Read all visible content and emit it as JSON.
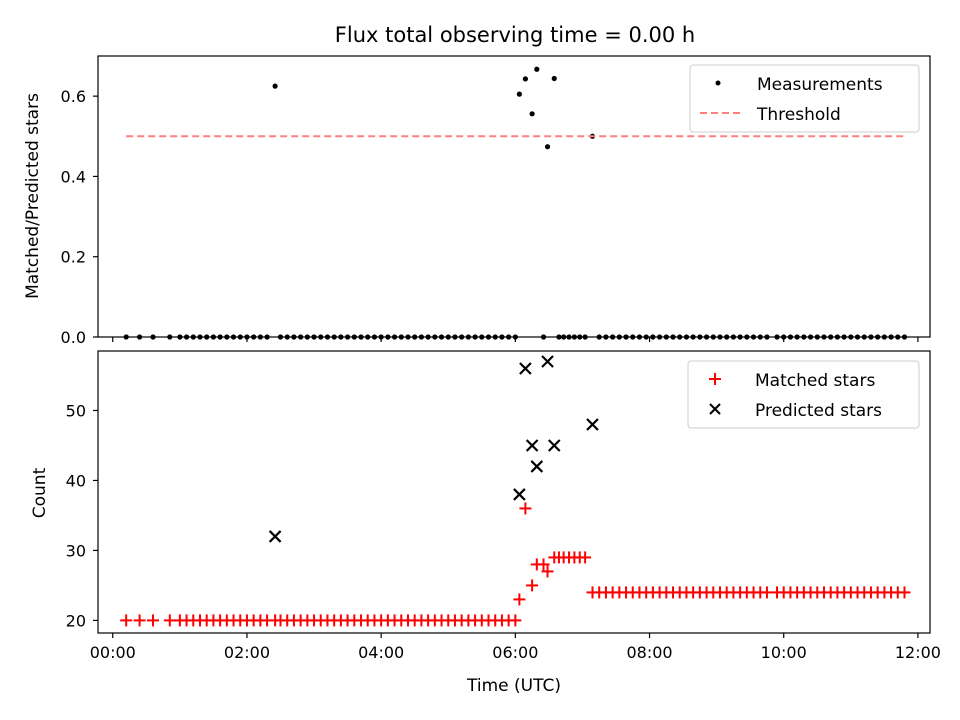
{
  "figure": {
    "title": "Flux total observing time = 0.00 h"
  },
  "chart_data": [
    {
      "type": "scatter",
      "ylabel": "Matched/Predicted stars",
      "xlabel": "",
      "xlim": [
        -0.22,
        12.18
      ],
      "ylim": [
        0.0,
        0.7
      ],
      "yticks": [
        0.0,
        0.2,
        0.4,
        0.6
      ],
      "xtick_hours": [
        0,
        2,
        4,
        6,
        8,
        10,
        12
      ],
      "xtick_labels": [],
      "legend": "top-right",
      "grid": false,
      "series": [
        {
          "name": "Measurements",
          "marker": "dot",
          "color": "#000000",
          "x": [
            0.2,
            0.4,
            0.6,
            0.85,
            1.0,
            1.1,
            1.2,
            1.3,
            1.4,
            1.5,
            1.6,
            1.7,
            1.8,
            1.9,
            2.0,
            2.1,
            2.2,
            2.3,
            2.42,
            2.5,
            2.6,
            2.7,
            2.8,
            2.9,
            3.0,
            3.1,
            3.2,
            3.3,
            3.4,
            3.5,
            3.6,
            3.7,
            3.8,
            3.9,
            4.0,
            4.1,
            4.2,
            4.3,
            4.4,
            4.5,
            4.6,
            4.7,
            4.8,
            4.9,
            5.0,
            5.1,
            5.2,
            5.3,
            5.4,
            5.5,
            5.6,
            5.7,
            5.8,
            5.9,
            6.0,
            6.06,
            6.15,
            6.25,
            6.32,
            6.42,
            6.48,
            6.58,
            6.65,
            6.72,
            6.8,
            6.88,
            6.96,
            7.04,
            7.15,
            7.25,
            7.35,
            7.45,
            7.55,
            7.65,
            7.75,
            7.85,
            7.95,
            8.05,
            8.15,
            8.25,
            8.35,
            8.45,
            8.55,
            8.65,
            8.75,
            8.85,
            8.95,
            9.05,
            9.15,
            9.25,
            9.35,
            9.45,
            9.55,
            9.65,
            9.75,
            9.9,
            10.0,
            10.1,
            10.2,
            10.3,
            10.4,
            10.5,
            10.6,
            10.7,
            10.8,
            10.9,
            11.0,
            11.1,
            11.2,
            11.3,
            11.4,
            11.5,
            11.6,
            11.7,
            11.8
          ],
          "y": [
            0,
            0,
            0,
            0,
            0,
            0,
            0,
            0,
            0,
            0,
            0,
            0,
            0,
            0,
            0,
            0,
            0,
            0,
            0.625,
            0,
            0,
            0,
            0,
            0,
            0,
            0,
            0,
            0,
            0,
            0,
            0,
            0,
            0,
            0,
            0,
            0,
            0,
            0,
            0,
            0,
            0,
            0,
            0,
            0,
            0,
            0,
            0,
            0,
            0,
            0,
            0,
            0,
            0,
            0,
            0,
            0.605,
            0.643,
            0.556,
            0.667,
            0,
            0.474,
            0.644,
            0,
            0,
            0,
            0,
            0,
            0,
            0.5,
            0,
            0,
            0,
            0,
            0,
            0,
            0,
            0,
            0,
            0,
            0,
            0,
            0,
            0,
            0,
            0,
            0,
            0,
            0,
            0,
            0,
            0,
            0,
            0,
            0,
            0,
            0,
            0,
            0,
            0,
            0,
            0,
            0,
            0,
            0,
            0,
            0,
            0,
            0,
            0,
            0,
            0,
            0,
            0,
            0,
            0
          ]
        },
        {
          "name": "Threshold",
          "marker": "dashed-line",
          "color": "#ff7f7f",
          "x": [
            0.2,
            11.8
          ],
          "y": [
            0.5,
            0.5
          ]
        }
      ]
    },
    {
      "type": "scatter",
      "ylabel": "Count",
      "xlabel": "Time (UTC)",
      "xlim": [
        -0.22,
        12.18
      ],
      "ylim": [
        18.2,
        58.5
      ],
      "yticks": [
        20,
        30,
        40,
        50
      ],
      "xtick_hours": [
        0,
        2,
        4,
        6,
        8,
        10,
        12
      ],
      "xtick_labels": [
        "00:00",
        "02:00",
        "04:00",
        "06:00",
        "08:00",
        "10:00",
        "12:00"
      ],
      "legend": "top-right",
      "grid": false,
      "series": [
        {
          "name": "Matched stars",
          "marker": "plus",
          "color": "#ff0000",
          "x": [
            0.2,
            0.4,
            0.6,
            0.85,
            1.0,
            1.1,
            1.2,
            1.3,
            1.4,
            1.5,
            1.6,
            1.7,
            1.8,
            1.9,
            2.0,
            2.1,
            2.2,
            2.3,
            2.42,
            2.5,
            2.6,
            2.7,
            2.8,
            2.9,
            3.0,
            3.1,
            3.2,
            3.3,
            3.4,
            3.5,
            3.6,
            3.7,
            3.8,
            3.9,
            4.0,
            4.1,
            4.2,
            4.3,
            4.4,
            4.5,
            4.6,
            4.7,
            4.8,
            4.9,
            5.0,
            5.1,
            5.2,
            5.3,
            5.4,
            5.5,
            5.6,
            5.7,
            5.8,
            5.9,
            6.0,
            6.06,
            6.15,
            6.25,
            6.32,
            6.42,
            6.48,
            6.58,
            6.65,
            6.72,
            6.8,
            6.88,
            6.96,
            7.04,
            7.15,
            7.25,
            7.35,
            7.45,
            7.55,
            7.65,
            7.75,
            7.85,
            7.95,
            8.05,
            8.15,
            8.25,
            8.35,
            8.45,
            8.55,
            8.65,
            8.75,
            8.85,
            8.95,
            9.05,
            9.15,
            9.25,
            9.35,
            9.45,
            9.55,
            9.65,
            9.75,
            9.9,
            10.0,
            10.1,
            10.2,
            10.3,
            10.4,
            10.5,
            10.6,
            10.7,
            10.8,
            10.9,
            11.0,
            11.1,
            11.2,
            11.3,
            11.4,
            11.5,
            11.6,
            11.7,
            11.8
          ],
          "y": [
            20,
            20,
            20,
            20,
            20,
            20,
            20,
            20,
            20,
            20,
            20,
            20,
            20,
            20,
            20,
            20,
            20,
            20,
            20,
            20,
            20,
            20,
            20,
            20,
            20,
            20,
            20,
            20,
            20,
            20,
            20,
            20,
            20,
            20,
            20,
            20,
            20,
            20,
            20,
            20,
            20,
            20,
            20,
            20,
            20,
            20,
            20,
            20,
            20,
            20,
            20,
            20,
            20,
            20,
            20,
            23,
            36,
            25,
            28,
            28,
            27,
            29,
            29,
            29,
            29,
            29,
            29,
            29,
            24,
            24,
            24,
            24,
            24,
            24,
            24,
            24,
            24,
            24,
            24,
            24,
            24,
            24,
            24,
            24,
            24,
            24,
            24,
            24,
            24,
            24,
            24,
            24,
            24,
            24,
            24,
            24,
            24,
            24,
            24,
            24,
            24,
            24,
            24,
            24,
            24,
            24,
            24,
            24,
            24,
            24,
            24,
            24,
            24,
            24,
            24
          ]
        },
        {
          "name": "Predicted stars",
          "marker": "x",
          "color": "#000000",
          "x": [
            2.42,
            6.06,
            6.15,
            6.25,
            6.32,
            6.48,
            6.58,
            7.15
          ],
          "y": [
            32,
            38,
            56,
            45,
            42,
            57,
            45,
            48
          ]
        }
      ]
    }
  ]
}
